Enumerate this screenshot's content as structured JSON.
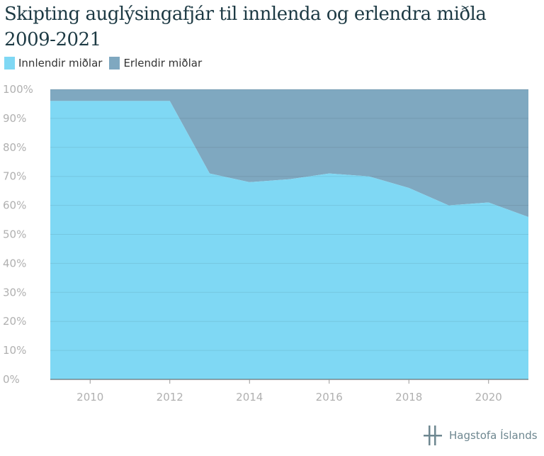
{
  "chart_data": {
    "type": "area",
    "stacked": "percent",
    "title": "Skipting auglýsingafjár til innlenda og erlendra miðla",
    "subtitle": "2009-2021",
    "x": [
      2009,
      2010,
      2011,
      2012,
      2013,
      2014,
      2015,
      2016,
      2017,
      2018,
      2019,
      2020,
      2021
    ],
    "series": [
      {
        "name": "Innlendir miðlar",
        "color": "#7fd8f4",
        "values": [
          96,
          96,
          96,
          96,
          71,
          68,
          69,
          71,
          70,
          66,
          60,
          61,
          56
        ]
      },
      {
        "name": "Erlendir miðlar",
        "color": "#7fa8c0",
        "values": [
          4,
          4,
          4,
          4,
          29,
          32,
          31,
          29,
          30,
          34,
          40,
          39,
          44
        ]
      }
    ],
    "xticks": [
      "2010",
      "2012",
      "2014",
      "2016",
      "2018",
      "2020"
    ],
    "yticks": [
      "0%",
      "10%",
      "20%",
      "30%",
      "40%",
      "50%",
      "60%",
      "70%",
      "80%",
      "90%",
      "100%"
    ],
    "xlim": [
      2009,
      2021
    ],
    "ylim": [
      0,
      100
    ],
    "grid": true,
    "legend_position": "top-left"
  },
  "footer": {
    "logo_text": "Hagstofa Íslands"
  }
}
